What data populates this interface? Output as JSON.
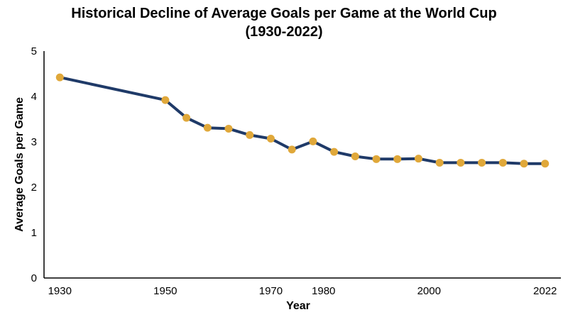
{
  "chart_data": {
    "type": "line",
    "title_line1": "Historical Decline of Average Goals per Game at the World Cup",
    "title_line2": "(1930-2022)",
    "xlabel": "Year",
    "ylabel": "Average Goals per Game",
    "xlim": [
      1927,
      2025
    ],
    "ylim": [
      0,
      5
    ],
    "x_ticks": [
      1930,
      1950,
      1970,
      1980,
      2000,
      2022
    ],
    "y_ticks": [
      0,
      1,
      2,
      3,
      4,
      5
    ],
    "grid": false,
    "colors": {
      "line": "#1f3a68",
      "marker": "#e0a83a"
    },
    "series": [
      {
        "x": [
          1930,
          1950,
          1954,
          1958,
          1962,
          1966,
          1970,
          1974,
          1978,
          1982,
          1986,
          1990,
          1994,
          1998,
          2002,
          2006,
          2010,
          2014,
          2018,
          2022
        ],
        "y": [
          4.42,
          3.92,
          3.53,
          3.31,
          3.29,
          3.15,
          3.07,
          2.83,
          3.01,
          2.78,
          2.68,
          2.62,
          2.62,
          2.63,
          2.54,
          2.54,
          2.54,
          2.54,
          2.52,
          2.52
        ]
      }
    ]
  }
}
